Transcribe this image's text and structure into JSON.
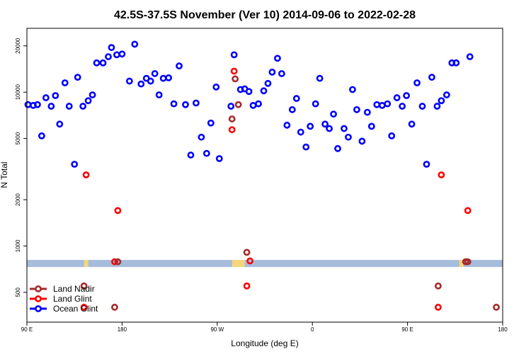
{
  "chart_data": {
    "type": "scatter",
    "title": "42.5S-37.5S November (Ver 10)   2014-09-06 to 2022-02-28",
    "xlabel": "Longitude (deg E)",
    "ylabel": "N Total",
    "yscale": "log",
    "xlim": [
      90,
      540
    ],
    "ylim": [
      320,
      26000
    ],
    "xticks": [
      {
        "value": 90,
        "label": "90 E"
      },
      {
        "value": 180,
        "label": "180"
      },
      {
        "value": 270,
        "label": "90 W"
      },
      {
        "value": 360,
        "label": "0"
      },
      {
        "value": 450,
        "label": "90 E"
      },
      {
        "value": 540,
        "label": "180"
      }
    ],
    "yticks": [
      {
        "value": 500,
        "label": "500"
      },
      {
        "value": 1000,
        "label": "1000"
      },
      {
        "value": 2000,
        "label": "2000"
      },
      {
        "value": 5000,
        "label": "5000"
      },
      {
        "value": 10000,
        "label": "10000"
      },
      {
        "value": 20000,
        "label": "20000"
      }
    ],
    "band": {
      "value": 770,
      "color": "#a5bcdb"
    },
    "band_highlights": [
      {
        "x": [
          144,
          148
        ],
        "color": "#f5d57e"
      },
      {
        "x": [
          284,
          296
        ],
        "color": "#f5d57e"
      },
      {
        "x": [
          499,
          503
        ],
        "color": "#f5d57e"
      }
    ],
    "legend": [
      {
        "name": "Land Nadir",
        "color": "#a52a2a"
      },
      {
        "name": "Land Glint",
        "color": "#ff0000"
      },
      {
        "name": "Ocean Glint",
        "color": "#0000ff"
      }
    ],
    "legend_position": "bottom-left",
    "series": [
      {
        "name": "Ocean Glint",
        "color": "#0000ff",
        "points": [
          [
            91,
            8300
          ],
          [
            96,
            8200
          ],
          [
            100,
            8300
          ],
          [
            104,
            5200
          ],
          [
            108,
            9200
          ],
          [
            113,
            8100
          ],
          [
            117,
            9500
          ],
          [
            121,
            6200
          ],
          [
            126,
            11500
          ],
          [
            130,
            8100
          ],
          [
            135,
            3400
          ],
          [
            138,
            12500
          ],
          [
            143,
            8100
          ],
          [
            148,
            8800
          ],
          [
            152,
            9600
          ],
          [
            156,
            15500
          ],
          [
            162,
            15500
          ],
          [
            167,
            17000
          ],
          [
            170,
            19500
          ],
          [
            175,
            17500
          ],
          [
            180,
            17700
          ],
          [
            187,
            11800
          ],
          [
            192,
            20500
          ],
          [
            198,
            11300
          ],
          [
            203,
            12300
          ],
          [
            207,
            11800
          ],
          [
            211,
            13200
          ],
          [
            215,
            9600
          ],
          [
            219,
            12300
          ],
          [
            224,
            12400
          ],
          [
            229,
            8400
          ],
          [
            234,
            14800
          ],
          [
            240,
            8300
          ],
          [
            245,
            3900
          ],
          [
            250,
            8500
          ],
          [
            255,
            5100
          ],
          [
            260,
            4000
          ],
          [
            264,
            6300
          ],
          [
            269,
            10800
          ],
          [
            272,
            3700
          ],
          [
            283,
            8100
          ],
          [
            286,
            17500
          ],
          [
            292,
            10400
          ],
          [
            296,
            10500
          ],
          [
            300,
            10100
          ],
          [
            304,
            8200
          ],
          [
            309,
            8400
          ],
          [
            314,
            10200
          ],
          [
            318,
            11400
          ],
          [
            322,
            13500
          ],
          [
            327,
            16600
          ],
          [
            331,
            13200
          ],
          [
            336,
            6100
          ],
          [
            341,
            7700
          ],
          [
            345,
            9100
          ],
          [
            349,
            5500
          ],
          [
            354,
            4400
          ],
          [
            358,
            6000
          ],
          [
            363,
            8400
          ],
          [
            367,
            12300
          ],
          [
            372,
            6200
          ],
          [
            376,
            5800
          ],
          [
            380,
            7200
          ],
          [
            384,
            4300
          ],
          [
            390,
            5800
          ],
          [
            394,
            5100
          ],
          [
            398,
            10400
          ],
          [
            402,
            7700
          ],
          [
            407,
            4800
          ],
          [
            412,
            7400
          ],
          [
            416,
            6000
          ],
          [
            421,
            8300
          ],
          [
            426,
            8200
          ],
          [
            431,
            8400
          ],
          [
            435,
            5200
          ],
          [
            440,
            9200
          ],
          [
            445,
            8100
          ],
          [
            449,
            9500
          ],
          [
            454,
            6200
          ],
          [
            459,
            11500
          ],
          [
            464,
            8100
          ],
          [
            468,
            3400
          ],
          [
            473,
            12500
          ],
          [
            478,
            8100
          ],
          [
            482,
            8800
          ],
          [
            487,
            9600
          ],
          [
            492,
            15500
          ],
          [
            496,
            15500
          ],
          [
            509,
            17000
          ]
        ]
      },
      {
        "name": "Land Glint",
        "color": "#ff0000",
        "points": [
          [
            146,
            2900
          ],
          [
            144,
            400
          ],
          [
            176,
            1700
          ],
          [
            173,
            790
          ],
          [
            284,
            5700
          ],
          [
            286,
            13700
          ],
          [
            298,
            550
          ],
          [
            301,
            800
          ],
          [
            482,
            2900
          ],
          [
            479,
            400
          ],
          [
            507,
            1700
          ],
          [
            505,
            790
          ]
        ]
      },
      {
        "name": "Land Nadir",
        "color": "#a52a2a",
        "points": [
          [
            144,
            550
          ],
          [
            173,
            400
          ],
          [
            176,
            790
          ],
          [
            284,
            6700
          ],
          [
            287,
            12200
          ],
          [
            290,
            8300
          ],
          [
            298,
            910
          ],
          [
            479,
            550
          ],
          [
            505,
            790
          ],
          [
            507,
            790
          ],
          [
            534,
            400
          ]
        ]
      }
    ]
  }
}
